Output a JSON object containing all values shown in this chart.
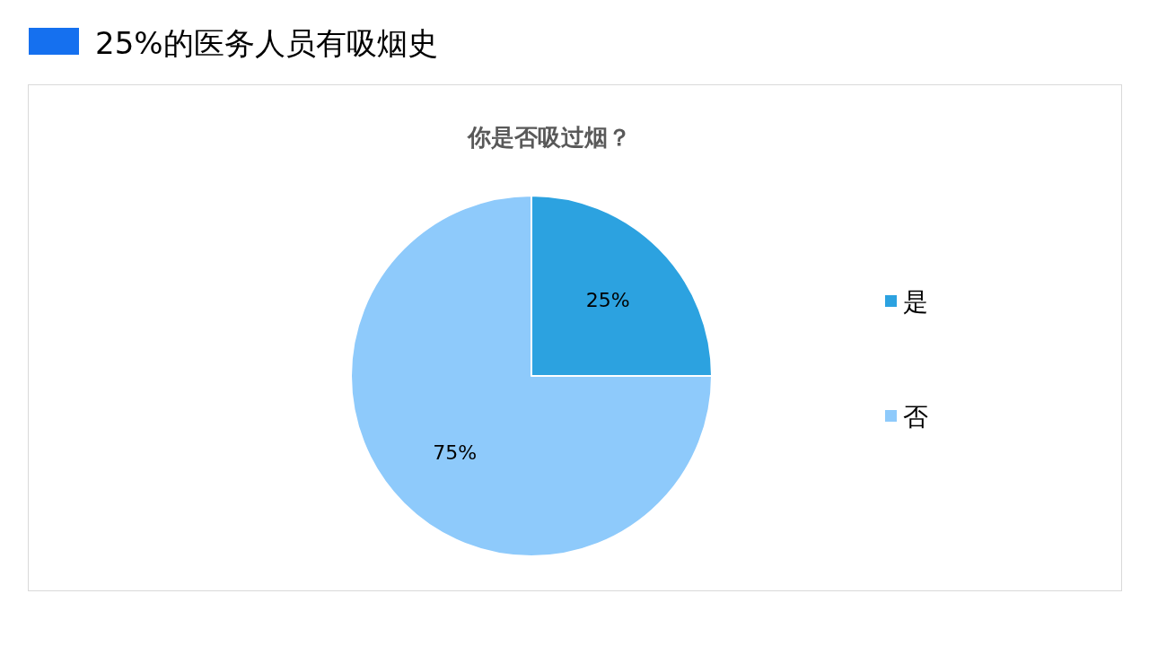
{
  "chart_data": {
    "type": "pie",
    "title": "25%的医务人员有吸烟史",
    "subtitle": "你是否吸过烟？",
    "categories": [
      "是",
      "否"
    ],
    "values": [
      25,
      75
    ],
    "colors": [
      "#2ca2e0",
      "#8ecafb"
    ],
    "value_labels": [
      "25%",
      "75%"
    ],
    "legend": "right"
  }
}
